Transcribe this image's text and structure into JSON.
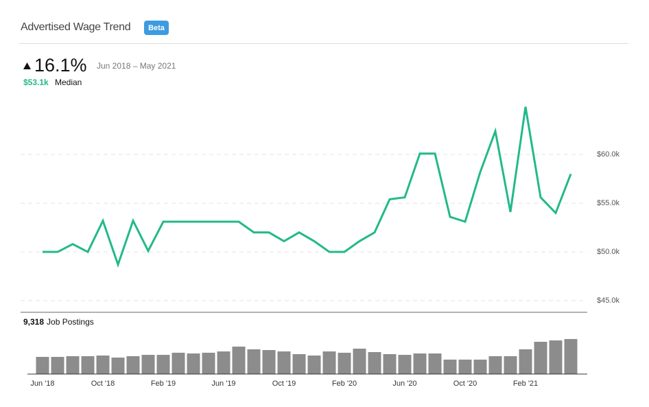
{
  "header": {
    "title": "Advertised Wage Trend",
    "badge": "Beta",
    "change": "16.1%",
    "period": "Jun 2018 – May 2021",
    "median": "$53.1k",
    "median_label": "Median"
  },
  "chart_data": [
    {
      "type": "line",
      "categories": [
        "Jun '18",
        null,
        null,
        null,
        "Oct '18",
        null,
        null,
        null,
        "Feb '19",
        null,
        null,
        null,
        "Jun '19",
        null,
        null,
        null,
        "Oct '19",
        null,
        null,
        null,
        "Feb '20",
        null,
        null,
        null,
        "Jun '20",
        null,
        null,
        null,
        "Oct '20",
        null,
        null,
        null,
        "Feb '21",
        null,
        null,
        null
      ],
      "series": [
        {
          "color": "#22b98a",
          "values": [
            50.0,
            50.0,
            50.8,
            50.0,
            53.2,
            48.7,
            53.2,
            50.1,
            53.1,
            53.1,
            53.1,
            53.1,
            53.1,
            53.1,
            52.0,
            52.0,
            51.1,
            52.0,
            51.1,
            50.0,
            50.0,
            51.1,
            52.0,
            55.4,
            55.6,
            60.1,
            60.1,
            53.6,
            53.1,
            58.2,
            62.4,
            54.1,
            64.9,
            55.6,
            54.0,
            58.0
          ]
        }
      ],
      "ylim": [
        43.8,
        66.0
      ],
      "yticks": [
        {
          "value": 45,
          "label": "$45.0k"
        },
        {
          "value": 50,
          "label": "$50.0k"
        },
        {
          "value": 55,
          "label": "$55.0k"
        },
        {
          "value": 60,
          "label": "$60.0k"
        }
      ],
      "grid": true
    },
    {
      "type": "bar",
      "title": "Job Postings",
      "total": {
        "value": 9318,
        "label": "9,318"
      },
      "color": "#8c8c8c",
      "values": [
        210,
        210,
        219,
        219,
        227,
        202,
        219,
        235,
        235,
        261,
        252,
        261,
        277,
        336,
        303,
        294,
        277,
        244,
        227,
        277,
        261,
        311,
        269,
        244,
        235,
        252,
        252,
        177,
        177,
        177,
        219,
        219,
        303,
        395,
        412,
        429
      ]
    }
  ]
}
